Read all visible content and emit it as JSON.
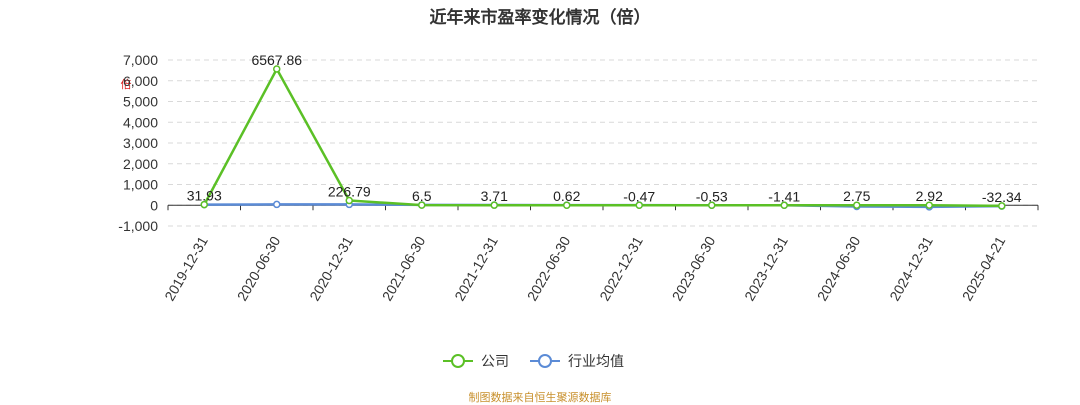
{
  "chart_data": {
    "type": "line",
    "title": "近年来市盈率变化情况（倍）",
    "ylabel": "倍",
    "ylim": [
      -1000,
      7000
    ],
    "yticks": [
      7000,
      6000,
      5000,
      4000,
      3000,
      2000,
      1000,
      0,
      -1000
    ],
    "ytick_labels": [
      "7,000",
      "6,000",
      "5,000",
      "4,000",
      "3,000",
      "2,000",
      "1,000",
      "0",
      "-1,000"
    ],
    "grid": true,
    "categories": [
      "2019-12-31",
      "2020-06-30",
      "2020-12-31",
      "2021-06-30",
      "2021-12-31",
      "2022-06-30",
      "2022-12-31",
      "2023-06-30",
      "2023-12-31",
      "2024-06-30",
      "2024-12-31",
      "2025-04-21"
    ],
    "series": [
      {
        "name": "公司",
        "color": "#5bc026",
        "values": [
          31.93,
          6567.86,
          226.79,
          6.5,
          3.71,
          0.62,
          -0.47,
          -0.53,
          -1.41,
          2.75,
          2.92,
          -32.34
        ],
        "labels": [
          "31.93",
          "6567.86",
          "226.79",
          "6.5",
          "3.71",
          "0.62",
          "-0.47",
          "-0.53",
          "-1.41",
          "2.75",
          "2.92",
          "-32.34"
        ]
      },
      {
        "name": "行业均值",
        "color": "#5b8bd6",
        "values": [
          30,
          40,
          40,
          15,
          10,
          8,
          5,
          3,
          2,
          -60,
          -80,
          -40
        ]
      }
    ],
    "legend_position": "bottom-center",
    "source": "制图数据来自恒生聚源数据库"
  }
}
